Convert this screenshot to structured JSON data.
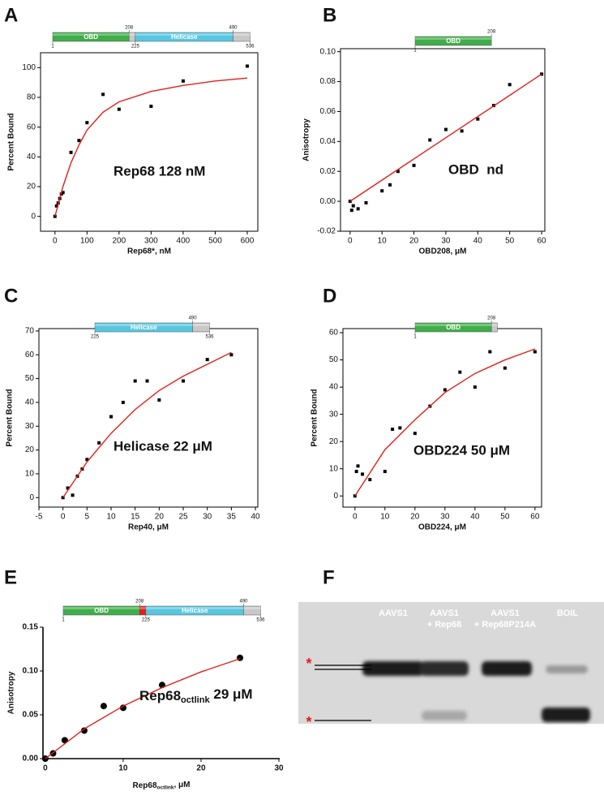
{
  "chart_data": [
    {
      "type": "scatter",
      "label": "A",
      "xlabel": "Rep68*, nM",
      "ylabel": "Percent Bound",
      "annotation": "Rep68 128 nM",
      "frame": true,
      "xlim": [
        -45,
        633
      ],
      "ylim": [
        -10,
        110
      ],
      "xticks": [
        0,
        100,
        200,
        300,
        400,
        500,
        600
      ],
      "yticks": [
        0,
        20,
        40,
        60,
        80,
        100
      ],
      "domain_map": {
        "segments": [
          {
            "name": "OBD",
            "start": 1,
            "end": 208,
            "color": "#3fae49"
          },
          {
            "start": 208,
            "end": 225,
            "color": "#c8c8c8"
          },
          {
            "name": "Helicase",
            "start": 225,
            "end": 490,
            "color": "#58c6e0"
          },
          {
            "start": 490,
            "end": 536,
            "color": "#c8c8c8"
          }
        ],
        "ticks": [
          1,
          208,
          225,
          490,
          536
        ]
      },
      "series": [
        {
          "color": "#000000",
          "marker": "square",
          "x": [
            0,
            5,
            10,
            15,
            20,
            25,
            50,
            75,
            100,
            150,
            200,
            300,
            400,
            600
          ],
          "values": [
            0,
            7,
            9,
            12,
            15,
            16,
            43,
            51,
            63,
            82,
            72,
            74,
            91,
            101
          ]
        },
        {
          "color": "#e0201a",
          "marker": "line",
          "x": [
            0,
            25,
            50,
            75,
            100,
            150,
            200,
            300,
            400,
            500,
            600
          ],
          "values": [
            0,
            20,
            36,
            48,
            58,
            70,
            77,
            84,
            88,
            91,
            93
          ]
        }
      ]
    },
    {
      "type": "scatter",
      "label": "B",
      "xlabel": "OBD208, μM",
      "ylabel": "Anisotropy",
      "annotation": "OBD  nd",
      "frame": true,
      "xlim": [
        -3,
        61
      ],
      "ylim": [
        -0.02,
        0.102
      ],
      "xticks": [
        0,
        10,
        20,
        30,
        40,
        50,
        60
      ],
      "yticks": [
        -0.02,
        {
          "value": 0,
          "label": "0.00"
        },
        0.02,
        0.04,
        0.06,
        0.08,
        {
          "value": 0.1,
          "label": "0.10"
        }
      ],
      "domain_map": {
        "segments": [
          {
            "name": "OBD",
            "start": 1,
            "end": 208,
            "color": "#3fae49"
          }
        ],
        "ticks": [
          1,
          208
        ]
      },
      "series": [
        {
          "color": "#000000",
          "marker": "square",
          "x": [
            0,
            0.5,
            1,
            2.5,
            5,
            10,
            12.5,
            15,
            20,
            25,
            30,
            35,
            40,
            45,
            50,
            60
          ],
          "values": [
            0,
            -0.006,
            -0.003,
            -0.005,
            -0.001,
            0.007,
            0.011,
            0.02,
            0.024,
            0.041,
            0.048,
            0.047,
            0.055,
            0.064,
            0.078,
            0.085
          ]
        },
        {
          "color": "#e0201a",
          "marker": "line",
          "x": [
            0,
            60
          ],
          "values": [
            0,
            0.085
          ]
        }
      ]
    },
    {
      "type": "scatter",
      "label": "C",
      "xlabel": "Rep40, μM",
      "ylabel": "Percent Bound",
      "annotation": "Helicase 22 μM",
      "frame": true,
      "xlim": [
        -5,
        40.5
      ],
      "ylim": [
        -4,
        71
      ],
      "xticks": [
        -5,
        0,
        5,
        10,
        15,
        20,
        25,
        30,
        35,
        40
      ],
      "yticks": [
        0,
        10,
        20,
        30,
        40,
        50,
        60,
        70
      ],
      "domain_map": {
        "segments": [
          {
            "name": "Helicase",
            "start": 225,
            "end": 490,
            "color": "#58c6e0"
          },
          {
            "start": 490,
            "end": 536,
            "color": "#c8c8c8"
          }
        ],
        "ticks": [
          225,
          490,
          536
        ]
      },
      "series": [
        {
          "color": "#000000",
          "marker": "square",
          "x": [
            0,
            1,
            2,
            3,
            4,
            5,
            7.5,
            10,
            12.5,
            15,
            17.5,
            20,
            25,
            30,
            35
          ],
          "values": [
            0,
            4,
            1,
            9,
            12,
            16,
            23,
            34,
            40,
            49,
            49,
            41,
            49,
            58,
            60
          ]
        },
        {
          "color": "#e0201a",
          "marker": "line",
          "x": [
            0,
            5,
            10,
            15,
            20,
            25,
            30,
            35
          ],
          "values": [
            0,
            15,
            27,
            37,
            45,
            51,
            56,
            61
          ]
        }
      ]
    },
    {
      "type": "scatter",
      "label": "D",
      "xlabel": "OBD224, μM",
      "ylabel": "Percent Bound",
      "annotation": "OBD224 50 μM",
      "frame": true,
      "xlim": [
        -4,
        62.2
      ],
      "ylim": [
        -4.1,
        61.5
      ],
      "xticks": [
        0,
        10,
        20,
        30,
        40,
        50,
        60
      ],
      "yticks": [
        0,
        10,
        20,
        30,
        40,
        50,
        60
      ],
      "domain_map": {
        "segments": [
          {
            "name": "OBD",
            "start": 1,
            "end": 208,
            "color": "#3fae49"
          },
          {
            "start": 208,
            "end": 224,
            "color": "#c8c8c8"
          }
        ],
        "ticks": [
          1,
          208
        ]
      },
      "series": [
        {
          "color": "#000000",
          "marker": "square",
          "x": [
            0,
            0.5,
            1,
            2.5,
            5,
            10,
            12.5,
            15,
            20,
            25,
            30,
            35,
            40,
            45,
            50,
            60
          ],
          "values": [
            0,
            9,
            11,
            8,
            6,
            9,
            24.5,
            25,
            23,
            33,
            39,
            45.5,
            40,
            53,
            47,
            53
          ]
        },
        {
          "color": "#e0201a",
          "marker": "line",
          "x": [
            0,
            10,
            20,
            30,
            40,
            50,
            60
          ],
          "values": [
            0,
            17,
            28,
            38,
            45,
            50,
            54
          ]
        }
      ]
    },
    {
      "type": "scatter",
      "label": "E",
      "xlabel": [
        "Rep68",
        "octlink",
        ", μM"
      ],
      "ylabel": "Anisotropy",
      "annotation": [
        "Rep68",
        "octlink",
        " 29 μM"
      ],
      "frame": false,
      "xlim": [
        -0.3,
        30.1
      ],
      "ylim": [
        0,
        0.15
      ],
      "xticks": [
        0,
        10,
        20,
        30
      ],
      "yticks": [
        {
          "value": 0,
          "label": "0.00"
        },
        0.05,
        {
          "value": 0.1,
          "label": "0.10"
        },
        0.15
      ],
      "domain_map": {
        "segments": [
          {
            "name": "OBD",
            "start": 1,
            "end": 208,
            "color": "#3fae49"
          },
          {
            "start": 208,
            "end": 225,
            "color": "#e3201b"
          },
          {
            "name": "Helicase",
            "start": 225,
            "end": 490,
            "color": "#58c6e0"
          },
          {
            "start": 490,
            "end": 536,
            "color": "#c8c8c8"
          }
        ],
        "ticks": [
          1,
          208,
          225,
          490,
          536
        ]
      },
      "series": [
        {
          "color": "#000000",
          "marker": "circle",
          "x": [
            0,
            1,
            2.5,
            5,
            7.5,
            10,
            15,
            25
          ],
          "values": [
            0,
            0.006,
            0.021,
            0.032,
            0.06,
            0.058,
            0.084,
            0.115
          ]
        },
        {
          "color": "#e0201a",
          "marker": "line",
          "x": [
            0,
            5,
            10,
            15,
            20,
            25
          ],
          "values": [
            0,
            0.034,
            0.06,
            0.081,
            0.099,
            0.114
          ]
        }
      ]
    }
  ],
  "gel": {
    "label": "F",
    "lanes": [
      [
        "AAVS1"
      ],
      [
        "AAVS1",
        "+ Rep68"
      ],
      [
        "AAVS1",
        "+ Rep68P214A"
      ],
      [
        "BOIL"
      ]
    ]
  }
}
